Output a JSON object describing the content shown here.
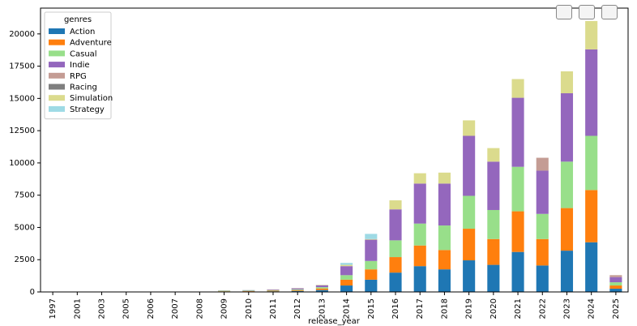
{
  "chart_data": {
    "type": "bar",
    "stacked": true,
    "xlabel": "release_year",
    "categories": [
      "1997",
      "2001",
      "2003",
      "2005",
      "2006",
      "2007",
      "2008",
      "2009",
      "2010",
      "2011",
      "2012",
      "2013",
      "2014",
      "2015",
      "2016",
      "2017",
      "2018",
      "2019",
      "2020",
      "2021",
      "2022",
      "2023",
      "2024",
      "2025"
    ],
    "legend_title": "genres",
    "legend_loc": "upper left",
    "series": [
      {
        "name": "Action",
        "color": "#1f77b4",
        "values": [
          1,
          1,
          1,
          1,
          1,
          2,
          5,
          30,
          40,
          50,
          80,
          150,
          500,
          950,
          1500,
          2000,
          1750,
          2450,
          2100,
          3100,
          2050,
          3200,
          3850,
          250
        ]
      },
      {
        "name": "Adventure",
        "color": "#ff7f0e",
        "values": [
          0,
          0,
          0,
          0,
          0,
          1,
          5,
          20,
          25,
          40,
          60,
          120,
          450,
          800,
          1200,
          1600,
          1500,
          2450,
          2000,
          3150,
          2050,
          3300,
          4050,
          250
        ]
      },
      {
        "name": "Casual",
        "color": "#98df8a",
        "values": [
          0,
          0,
          0,
          1,
          1,
          1,
          10,
          40,
          40,
          40,
          60,
          100,
          350,
          650,
          1300,
          1700,
          1900,
          2550,
          2250,
          3450,
          1950,
          3600,
          4200,
          250
        ]
      },
      {
        "name": "Indie",
        "color": "#9467bd",
        "values": [
          0,
          0,
          1,
          1,
          1,
          2,
          8,
          20,
          30,
          50,
          80,
          150,
          700,
          1650,
          2400,
          3100,
          3250,
          4650,
          3750,
          5350,
          3350,
          5300,
          6700,
          400
        ]
      },
      {
        "name": "RPG",
        "color": "#c49c94",
        "values": [
          0,
          0,
          0,
          0,
          0,
          0,
          0,
          0,
          0,
          0,
          0,
          0,
          0,
          0,
          0,
          0,
          0,
          0,
          0,
          0,
          1000,
          0,
          0,
          150
        ]
      },
      {
        "name": "Racing",
        "color": "#7f7f7f",
        "values": [
          0,
          0,
          0,
          0,
          0,
          0,
          0,
          0,
          0,
          0,
          0,
          0,
          0,
          0,
          0,
          0,
          0,
          0,
          0,
          0,
          0,
          0,
          0,
          0
        ]
      },
      {
        "name": "Simulation",
        "color": "#dbdb8d",
        "values": [
          0,
          0,
          0,
          0,
          0,
          0,
          2,
          10,
          10,
          20,
          20,
          30,
          100,
          50,
          700,
          800,
          850,
          1200,
          1050,
          1450,
          0,
          1700,
          2200,
          0
        ]
      },
      {
        "name": "Strategy",
        "color": "#9edae5",
        "values": [
          0,
          0,
          0,
          0,
          0,
          0,
          0,
          0,
          10,
          0,
          0,
          0,
          150,
          400,
          0,
          0,
          0,
          0,
          0,
          0,
          0,
          0,
          0,
          0
        ]
      }
    ],
    "ylim": [
      0,
      22000
    ],
    "yticks": [
      0,
      2500,
      5000,
      7500,
      10000,
      12500,
      15000,
      17500,
      20000
    ]
  }
}
